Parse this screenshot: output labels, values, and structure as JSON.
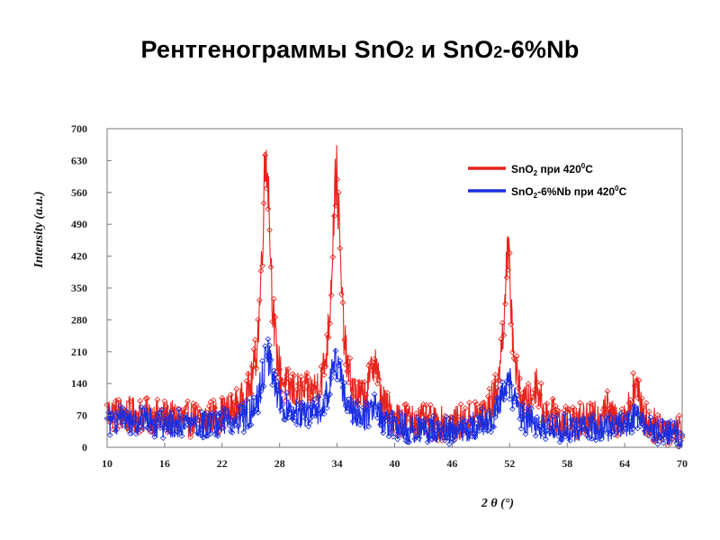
{
  "slide": {
    "title_part1": "Рентгенограммы SnO",
    "title_sub1": "2",
    "title_part2": " и SnO",
    "title_sub2": "2",
    "title_part3": "-6%Nb"
  },
  "chart_data": {
    "type": "line",
    "xlabel": "2 θ (°)",
    "ylabel": "Intensity (a.u.)",
    "xlim": [
      10,
      70
    ],
    "ylim": [
      0,
      700
    ],
    "x_ticks": [
      10,
      16,
      22,
      28,
      34,
      40,
      46,
      52,
      58,
      64,
      70
    ],
    "y_ticks": [
      0,
      70,
      140,
      210,
      280,
      350,
      420,
      490,
      560,
      630,
      700
    ],
    "legend_position": "top-right",
    "series": [
      {
        "name": "SnO2 при 420°C",
        "legend_label": {
          "part1": "SnO",
          "sub": "2",
          "part2": " при 420",
          "sup": "0",
          "part3": "C"
        },
        "color": "#e8231c",
        "peaks": [
          {
            "x": 26.6,
            "height": 560,
            "width": 0.85
          },
          {
            "x": 33.9,
            "height": 510,
            "width": 0.85
          },
          {
            "x": 37.9,
            "height": 120,
            "width": 0.8
          },
          {
            "x": 51.8,
            "height": 350,
            "width": 0.85
          },
          {
            "x": 54.8,
            "height": 70,
            "width": 0.7
          },
          {
            "x": 61.9,
            "height": 40,
            "width": 0.8
          },
          {
            "x": 65.1,
            "height": 90,
            "width": 0.9
          }
        ],
        "baseline": [
          [
            10,
            75
          ],
          [
            20,
            55
          ],
          [
            30,
            95
          ],
          [
            40,
            55
          ],
          [
            46,
            45
          ],
          [
            50,
            60
          ],
          [
            58,
            55
          ],
          [
            70,
            35
          ]
        ],
        "noise": 35
      },
      {
        "name": "SnO2-6%Nb при 420°C",
        "legend_label": {
          "part1": "SnO",
          "sub": "2",
          "part2": "-6%Nb при 420",
          "sup": "0",
          "part3": "C"
        },
        "color": "#1a2ee0",
        "peaks": [
          {
            "x": 26.8,
            "height": 140,
            "width": 1.3
          },
          {
            "x": 33.9,
            "height": 130,
            "width": 1.3
          },
          {
            "x": 37.9,
            "height": 40,
            "width": 1.0
          },
          {
            "x": 51.8,
            "height": 100,
            "width": 1.3
          },
          {
            "x": 65.0,
            "height": 35,
            "width": 1.0
          }
        ],
        "baseline": [
          [
            10,
            60
          ],
          [
            20,
            45
          ],
          [
            30,
            60
          ],
          [
            40,
            40
          ],
          [
            46,
            35
          ],
          [
            50,
            45
          ],
          [
            58,
            40
          ],
          [
            70,
            30
          ]
        ],
        "noise": 30
      }
    ]
  }
}
